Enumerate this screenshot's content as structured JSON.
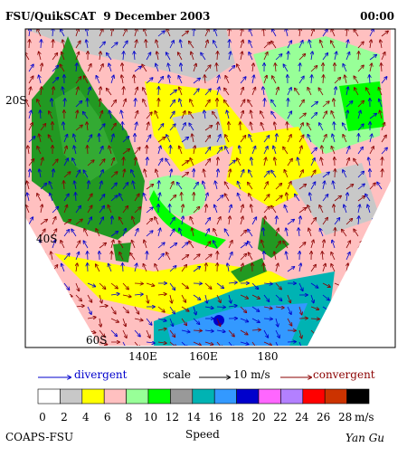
{
  "header": {
    "title": "FSU/QuikSCAT  9 December 2003",
    "time": "00:00"
  },
  "map": {
    "lat_labels": [
      "20S",
      "40S",
      "60S"
    ],
    "lon_labels": [
      "140E",
      "160E",
      "180"
    ]
  },
  "legend": {
    "divergent": "divergent",
    "scale": "scale",
    "scale_value": "10 m/s",
    "convergent": "convergent"
  },
  "colorbar": {
    "colors": [
      "#ffffff",
      "#c8c8c8",
      "#ffff00",
      "#ffc0c0",
      "#98ff98",
      "#00ff00",
      "#999999",
      "#00b3b3",
      "#3399ff",
      "#0000cc",
      "#ff66ff",
      "#b380ff",
      "#ff0000",
      "#cc3300",
      "#000000"
    ],
    "ticks": [
      0,
      2,
      4,
      6,
      8,
      10,
      12,
      14,
      16,
      18,
      20,
      22,
      24,
      26,
      28
    ],
    "unit": "m/s",
    "label": "Speed"
  },
  "footer": {
    "left": "COAPS-FSU",
    "right": "Yan Gu"
  }
}
